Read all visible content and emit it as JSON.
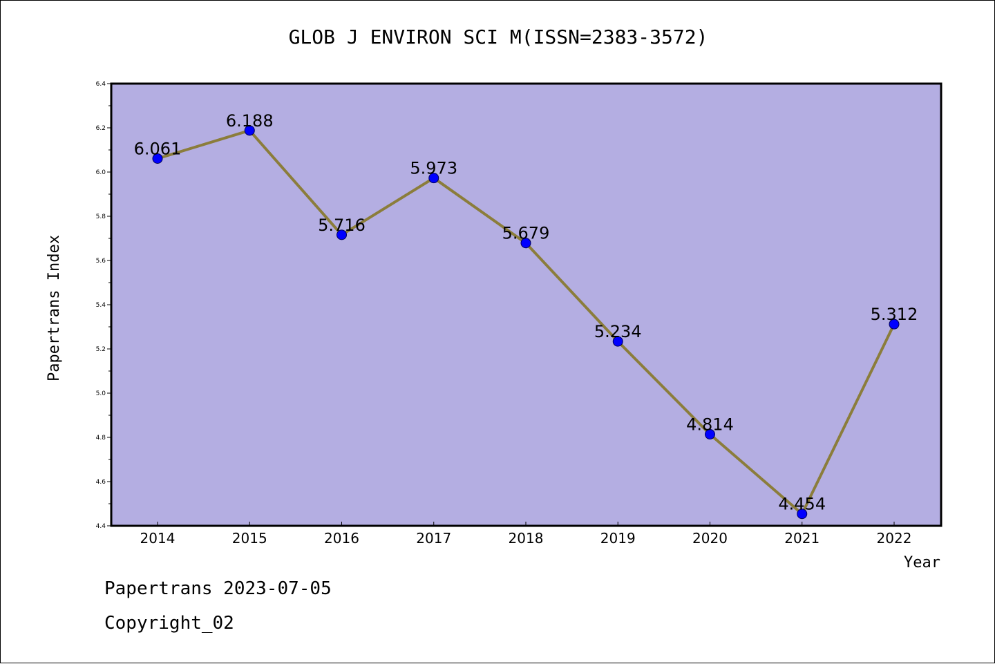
{
  "chart_data": {
    "type": "line",
    "title": "GLOB J ENVIRON SCI M(ISSN=2383-3572)",
    "xlabel": "Year",
    "ylabel": "Papertrans Index",
    "categories": [
      "2014",
      "2015",
      "2016",
      "2017",
      "2018",
      "2019",
      "2020",
      "2021",
      "2022"
    ],
    "values": [
      6.061,
      6.188,
      5.716,
      5.973,
      5.679,
      5.234,
      4.814,
      4.454,
      5.312
    ],
    "data_labels": [
      "6.061",
      "6.188",
      "5.716",
      "5.973",
      "5.679",
      "5.234",
      "4.814",
      "4.454",
      "5.312"
    ],
    "ylim": [
      4.4,
      6.4
    ],
    "yticks": [
      "4.4",
      "4.6",
      "4.8",
      "5.0",
      "5.2",
      "5.4",
      "5.6",
      "5.8",
      "6.0",
      "6.2",
      "6.4"
    ],
    "grid": false,
    "colors": {
      "plot_background": "#b4aee2",
      "line": "#8b7d3b",
      "marker": "#0000ff"
    }
  },
  "footer": {
    "line1": "Papertrans 2023-07-05",
    "line2": "Copyright_02"
  }
}
